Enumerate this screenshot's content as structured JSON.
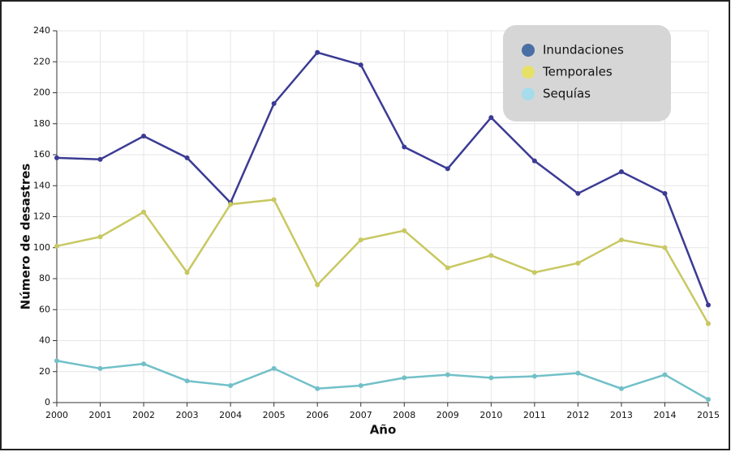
{
  "chart_data": {
    "type": "line",
    "x_label": "Año",
    "y_label": "Número de desastres",
    "x": [
      2000,
      2001,
      2002,
      2003,
      2004,
      2005,
      2006,
      2007,
      2008,
      2009,
      2010,
      2011,
      2012,
      2013,
      2014,
      2015
    ],
    "xlim": [
      2000,
      2015
    ],
    "xticks": [
      2000,
      2001,
      2002,
      2003,
      2004,
      2005,
      2006,
      2007,
      2008,
      2009,
      2010,
      2011,
      2012,
      2013,
      2014,
      2015
    ],
    "ylim": [
      0,
      240
    ],
    "yticks": [
      0,
      20,
      40,
      60,
      80,
      100,
      120,
      140,
      160,
      180,
      200,
      220,
      240
    ],
    "grid": true,
    "legend_position": "upper-right",
    "series": [
      {
        "name": "Inundaciones",
        "color": "#3b3b94",
        "legend_color": "#4a6fa5",
        "values": [
          158,
          157,
          172,
          158,
          129,
          193,
          226,
          218,
          165,
          151,
          184,
          156,
          135,
          149,
          135,
          63
        ]
      },
      {
        "name": "Temporales",
        "color": "#c8c862",
        "legend_color": "#e6e066",
        "values": [
          101,
          107,
          123,
          84,
          128,
          131,
          76,
          105,
          111,
          87,
          95,
          84,
          90,
          105,
          100,
          51
        ]
      },
      {
        "name": "Sequías",
        "color": "#72c0c8",
        "legend_color": "#a6dcec",
        "values": [
          27,
          22,
          25,
          14,
          11,
          22,
          9,
          11,
          16,
          18,
          16,
          17,
          19,
          9,
          18,
          2
        ]
      }
    ]
  }
}
